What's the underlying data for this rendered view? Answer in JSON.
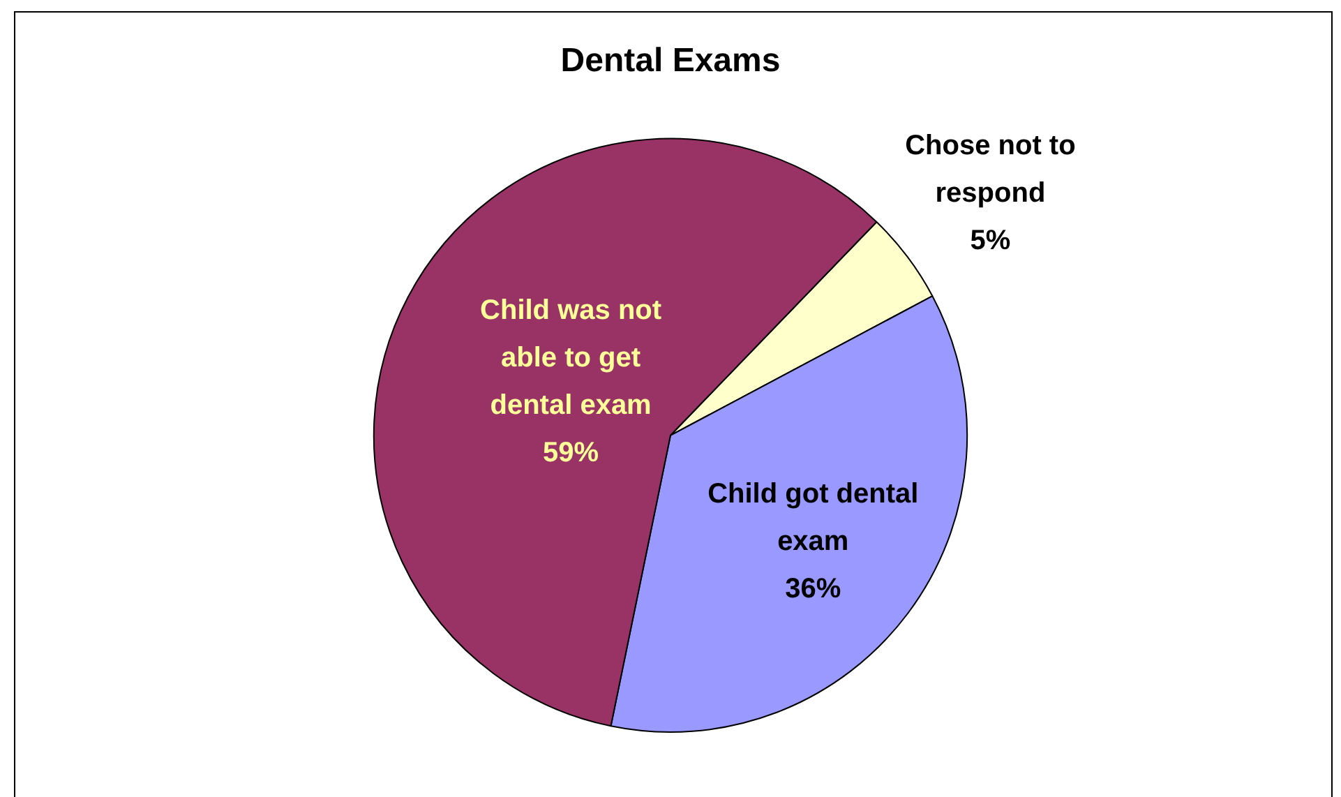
{
  "chart_data": {
    "type": "pie",
    "title": "Dental Exams",
    "categories": [
      "Chose not to respond",
      "Child got dental exam",
      "Child was not able to get dental exam"
    ],
    "values": [
      5,
      36,
      59
    ],
    "colors": [
      "#ffffcc",
      "#9999ff",
      "#993366"
    ],
    "value_labels": [
      "5%",
      "36%",
      "59%"
    ],
    "legend": false
  }
}
